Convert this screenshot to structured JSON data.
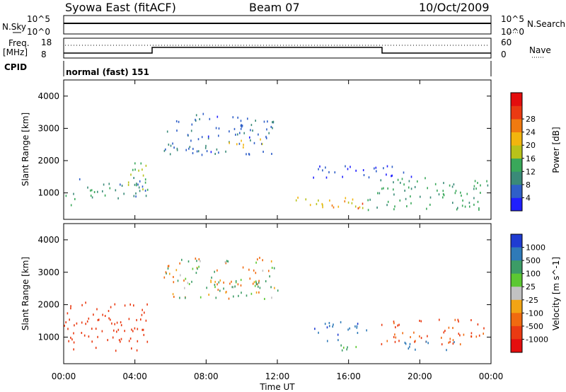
{
  "header": {
    "station": "Syowa East (fitACF)",
    "beam": "Beam 07",
    "date": "10/Oct/2009"
  },
  "panels": {
    "nsky": {
      "label": "N.Sky",
      "ticks": [
        "10^5",
        "10^0"
      ],
      "right_label": "N.Search",
      "right_ticks": [
        "10^5",
        "10^0"
      ]
    },
    "freq": {
      "label_line1": "Freq.",
      "label_line2": "[MHz]",
      "ticks": [
        "18",
        "8"
      ],
      "right_label": "Nave",
      "right_ticks": [
        "60",
        "0"
      ]
    },
    "cpid": {
      "label": "CPID",
      "mode_text": "normal (fast) 151"
    }
  },
  "chart_data": [
    {
      "type": "heatmap",
      "title": "",
      "xlabel": "Time UT",
      "ylabel": "Slant Range [km]",
      "x_ticks": [
        "00:00",
        "04:00",
        "08:00",
        "12:00",
        "16:00",
        "20:00",
        "00:00"
      ],
      "xlim": [
        0,
        24
      ],
      "ylim": [
        180,
        4500
      ],
      "y_ticks": [
        1000,
        2000,
        3000,
        4000
      ],
      "colorbar": {
        "label": "Power [dB]",
        "ticks": [
          "4",
          "8",
          "12",
          "16",
          "20",
          "24",
          "28"
        ],
        "colors": [
          "#1f1fff",
          "#2f5fc8",
          "#3a8a78",
          "#39a85a",
          "#b8c21a",
          "#f2b50e",
          "#f07a10",
          "#ea3a12",
          "#e40e0e"
        ]
      },
      "regions": [
        {
          "t": [
            0.0,
            0.6
          ],
          "r": [
            500,
            1000
          ],
          "value": 10
        },
        {
          "t": [
            0.5,
            4.8
          ],
          "r": [
            800,
            1500
          ],
          "value": 9
        },
        {
          "t": [
            3.6,
            4.8
          ],
          "r": [
            1000,
            2100
          ],
          "value": 14
        },
        {
          "t": [
            5.6,
            11.8
          ],
          "r": [
            2200,
            3500
          ],
          "value": 6
        },
        {
          "t": [
            9.0,
            11.2
          ],
          "r": [
            2400,
            2700
          ],
          "value": 18
        },
        {
          "t": [
            13.0,
            17.0
          ],
          "r": [
            500,
            900
          ],
          "value": 18
        },
        {
          "t": [
            15.0,
            16.8
          ],
          "r": [
            550,
            800
          ],
          "value": 24
        },
        {
          "t": [
            17.0,
            23.8
          ],
          "r": [
            500,
            1500
          ],
          "value": 11
        },
        {
          "t": [
            14.0,
            20.0
          ],
          "r": [
            1500,
            1900
          ],
          "value": 4
        }
      ]
    },
    {
      "type": "heatmap",
      "title": "",
      "xlabel": "Time UT",
      "ylabel": "Slant Range [km]",
      "x_ticks": [
        "00:00",
        "04:00",
        "08:00",
        "12:00",
        "16:00",
        "20:00",
        "00:00"
      ],
      "xlim": [
        0,
        24
      ],
      "ylim": [
        180,
        4500
      ],
      "y_ticks": [
        1000,
        2000,
        3000,
        4000
      ],
      "colorbar": {
        "label": "Velocity [m s^-1]",
        "ticks": [
          "1000",
          "500",
          "100",
          "25",
          "-25",
          "-100",
          "-500",
          "-1000"
        ],
        "colors": [
          "#1f3cd2",
          "#2f7ab8",
          "#3c9c66",
          "#5cc832",
          "#c2c2c2",
          "#f2a414",
          "#f06a10",
          "#ea3a12",
          "#e40e0e"
        ]
      },
      "regions": [
        {
          "t": [
            0.0,
            4.8
          ],
          "r": [
            600,
            2100
          ],
          "value": -500
        },
        {
          "t": [
            5.6,
            12.0
          ],
          "r": [
            2200,
            3500
          ],
          "value": 0
        },
        {
          "t": [
            8.0,
            12.0
          ],
          "r": [
            2400,
            2800
          ],
          "value": 100
        },
        {
          "t": [
            14.0,
            17.0
          ],
          "r": [
            900,
            1500
          ],
          "value": 600
        },
        {
          "t": [
            14.8,
            16.8
          ],
          "r": [
            550,
            800
          ],
          "value": 100
        },
        {
          "t": [
            17.8,
            23.6
          ],
          "r": [
            800,
            1600
          ],
          "value": -300
        },
        {
          "t": [
            19.0,
            22.0
          ],
          "r": [
            600,
            900
          ],
          "value": 500
        }
      ]
    }
  ]
}
